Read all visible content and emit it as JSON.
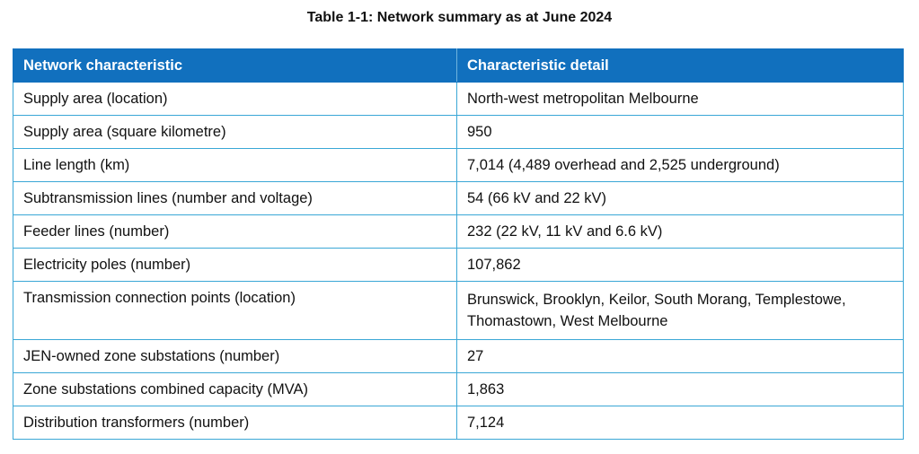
{
  "caption": "Table 1-1: Network summary as at June 2024",
  "table": {
    "headers": [
      "Network characteristic",
      "Characteristic detail"
    ],
    "rows": [
      [
        "Supply area (location)",
        "North-west metropolitan Melbourne"
      ],
      [
        "Supply area (square kilometre)",
        "950"
      ],
      [
        "Line length (km)",
        "7,014 (4,489 overhead and 2,525 underground)"
      ],
      [
        "Subtransmission lines (number and voltage)",
        "54 (66 kV and 22 kV)"
      ],
      [
        "Feeder lines (number)",
        "232 (22 kV, 11 kV and 6.6 kV)"
      ],
      [
        "Electricity poles (number)",
        "107,862"
      ],
      [
        "Transmission connection points (location)",
        "Brunswick, Brooklyn, Keilor, South Morang, Templestowe, Thomastown, West Melbourne"
      ],
      [
        "JEN-owned zone substations (number)",
        "27"
      ],
      [
        "Zone substations combined capacity (MVA)",
        "1,863"
      ],
      [
        "Distribution transformers (number)",
        "7,124"
      ]
    ]
  },
  "colors": {
    "header_background": "#1170be",
    "header_text": "#ffffff",
    "grid_border": "#3aa7d6"
  }
}
